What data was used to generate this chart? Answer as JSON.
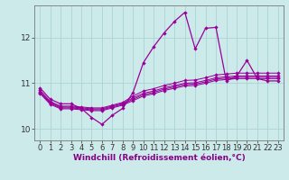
{
  "background_color": "#cceaea",
  "grid_color": "#aad4d4",
  "line_color": "#990099",
  "marker_size": 2.2,
  "xlabel": "Windchill (Refroidissement éolien,°C)",
  "xlabel_fontsize": 6.5,
  "tick_fontsize": 6.0,
  "xlim": [
    -0.5,
    23.5
  ],
  "ylim": [
    9.75,
    12.7
  ],
  "yticks": [
    10,
    11,
    12
  ],
  "xticks": [
    0,
    1,
    2,
    3,
    4,
    5,
    6,
    7,
    8,
    9,
    10,
    11,
    12,
    13,
    14,
    15,
    16,
    17,
    18,
    19,
    20,
    21,
    22,
    23
  ],
  "series": [
    [
      10.9,
      10.65,
      10.55,
      10.55,
      10.45,
      10.25,
      10.1,
      10.3,
      10.45,
      10.8,
      11.45,
      11.8,
      12.1,
      12.35,
      12.55,
      11.75,
      12.2,
      12.22,
      11.05,
      11.15,
      11.5,
      11.1,
      11.05,
      11.05
    ],
    [
      10.85,
      10.6,
      10.5,
      10.5,
      10.48,
      10.46,
      10.46,
      10.52,
      10.58,
      10.72,
      10.83,
      10.88,
      10.95,
      11.0,
      11.06,
      11.07,
      11.12,
      11.18,
      11.2,
      11.22,
      11.22,
      11.22,
      11.22,
      11.22
    ],
    [
      10.82,
      10.58,
      10.48,
      10.48,
      10.46,
      10.44,
      10.44,
      10.5,
      10.56,
      10.68,
      10.78,
      10.83,
      10.9,
      10.95,
      11.0,
      11.01,
      11.06,
      11.12,
      11.14,
      11.16,
      11.16,
      11.16,
      11.16,
      11.16
    ],
    [
      10.8,
      10.56,
      10.46,
      10.46,
      10.44,
      10.42,
      10.42,
      10.48,
      10.54,
      10.65,
      10.75,
      10.8,
      10.87,
      10.92,
      10.97,
      10.98,
      11.03,
      11.09,
      11.11,
      11.13,
      11.13,
      11.13,
      11.13,
      11.13
    ],
    [
      10.78,
      10.54,
      10.44,
      10.44,
      10.42,
      10.4,
      10.4,
      10.46,
      10.52,
      10.62,
      10.72,
      10.77,
      10.84,
      10.89,
      10.94,
      10.95,
      11.0,
      11.06,
      11.08,
      11.1,
      11.1,
      11.1,
      11.1,
      11.1
    ]
  ]
}
